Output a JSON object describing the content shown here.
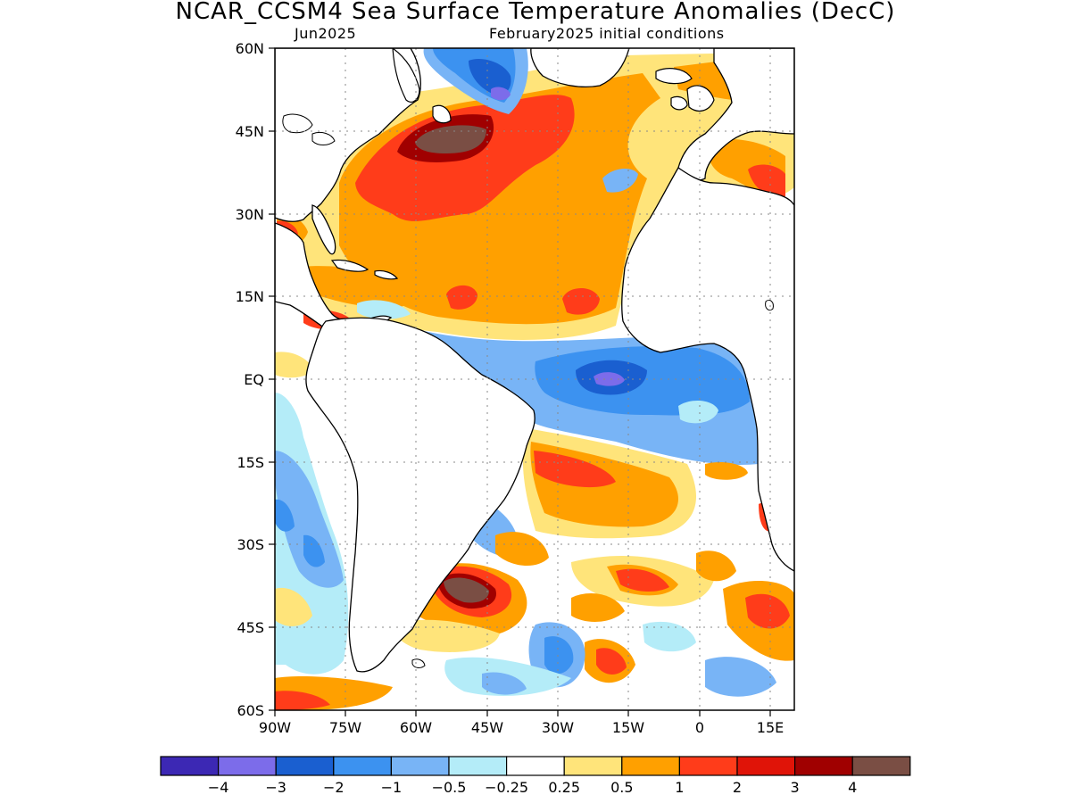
{
  "title": "NCAR_CCSM4 Sea Surface Temperature Anomalies (DecC)",
  "subtitle_left": "Jun2025",
  "subtitle_right": "February2025 initial conditions",
  "map": {
    "lon_range": [
      -90,
      20
    ],
    "lat_range": [
      -60,
      60
    ],
    "lat_ticks": [
      "60N",
      "45N",
      "30N",
      "15N",
      "EQ",
      "15S",
      "30S",
      "45S",
      "60S"
    ],
    "lon_ticks": [
      "90W",
      "75W",
      "60W",
      "45W",
      "30W",
      "15W",
      "0",
      "15E"
    ]
  },
  "colorbar": {
    "colors": [
      "#3c28b4",
      "#7c6cea",
      "#1a5fd0",
      "#3c92f0",
      "#78b4f6",
      "#b4ecf8",
      "#ffffff",
      "#ffe47a",
      "#ffa000",
      "#ff3c1a",
      "#e01408",
      "#a00000",
      "#7a4e44"
    ],
    "labels": [
      "−4",
      "−3",
      "−2",
      "−1",
      "−0.5",
      "−0.25",
      "0.25",
      "0.5",
      "1",
      "2",
      "3",
      "4"
    ]
  }
}
